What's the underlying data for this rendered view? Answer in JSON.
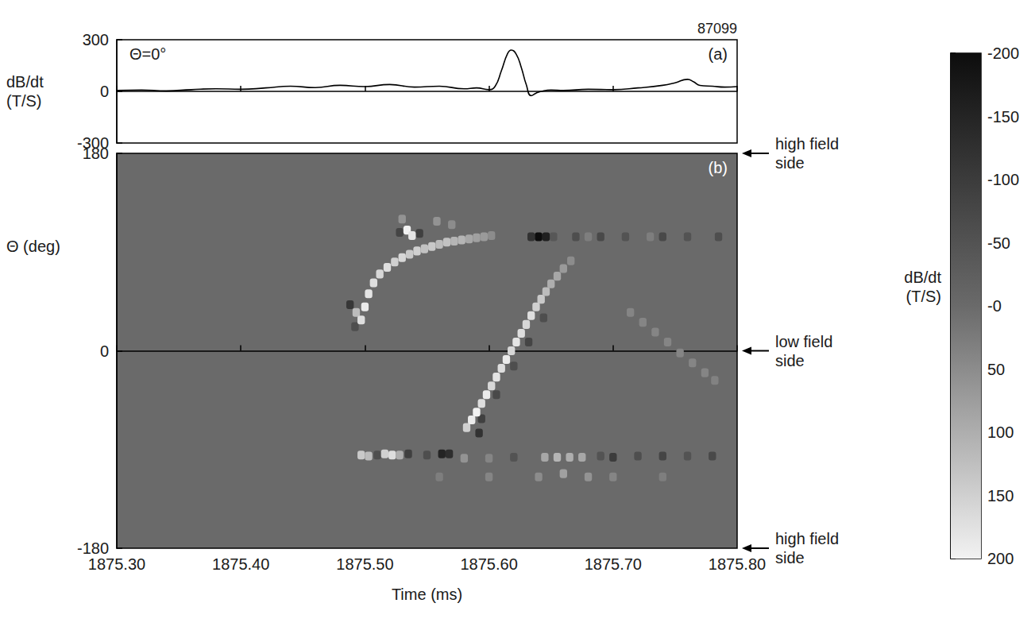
{
  "chart_data": [
    {
      "type": "line",
      "shot": "87099",
      "annotation": "Θ=0°",
      "panel_label": "(a)",
      "ylabel": "dB/dt\n(T/S)",
      "color": "#000000",
      "x": [
        1875.3,
        1875.32,
        1875.34,
        1875.36,
        1875.38,
        1875.4,
        1875.42,
        1875.44,
        1875.46,
        1875.48,
        1875.5,
        1875.52,
        1875.54,
        1875.56,
        1875.58,
        1875.59,
        1875.6,
        1875.605,
        1875.61,
        1875.615,
        1875.618,
        1875.622,
        1875.626,
        1875.63,
        1875.634,
        1875.638,
        1875.642,
        1875.65,
        1875.66,
        1875.68,
        1875.7,
        1875.72,
        1875.74,
        1875.75,
        1875.76,
        1875.765,
        1875.77,
        1875.78,
        1875.79,
        1875.8
      ],
      "values": [
        5,
        8,
        3,
        10,
        15,
        12,
        20,
        30,
        22,
        35,
        28,
        40,
        25,
        30,
        15,
        20,
        10,
        30,
        120,
        220,
        240,
        215,
        140,
        40,
        -25,
        -10,
        0,
        8,
        5,
        12,
        10,
        20,
        35,
        50,
        70,
        55,
        35,
        30,
        25,
        28
      ],
      "xlim": [
        1875.3,
        1875.8
      ],
      "xticks": [
        {
          "value": 1875.3,
          "label": "1875.30"
        },
        {
          "value": 1875.4,
          "label": "1875.40"
        },
        {
          "value": 1875.5,
          "label": "1875.50"
        },
        {
          "value": 1875.6,
          "label": "1875.60"
        },
        {
          "value": 1875.7,
          "label": "1875.70"
        },
        {
          "value": 1875.8,
          "label": "1875.80"
        }
      ],
      "ylim": [
        -300,
        300
      ],
      "yticks": [
        -300,
        0,
        300
      ],
      "tick_labels": "y"
    },
    {
      "type": "heatmap",
      "panel_label": "(b)",
      "xlabel": "Time (ms)",
      "ylabel": "Θ (deg)",
      "xlim": [
        1875.3,
        1875.8
      ],
      "xticks": [
        {
          "value": 1875.3,
          "label": "1875.30"
        },
        {
          "value": 1875.4,
          "label": "1875.40"
        },
        {
          "value": 1875.5,
          "label": "1875.50"
        },
        {
          "value": 1875.6,
          "label": "1875.60"
        },
        {
          "value": 1875.7,
          "label": "1875.70"
        },
        {
          "value": 1875.8,
          "label": "1875.80"
        }
      ],
      "ylim": [
        -180,
        180
      ],
      "yticks": [
        -180,
        0,
        180
      ],
      "annotations": [
        {
          "text": "high field side",
          "y": 180
        },
        {
          "text": "low field side",
          "y": 0
        },
        {
          "text": "high field side",
          "y": -180
        }
      ],
      "colorbar": {
        "label": "dB/dt\n(T/S)",
        "range": [
          -200,
          200
        ],
        "ticks": [
          -200,
          -150,
          -100,
          -50,
          {
            "value": 0,
            "label": "-0"
          },
          50,
          100,
          150,
          200
        ]
      },
      "cell_size": [
        0.006,
        8
      ],
      "cells": [
        [
          1875.56,
          -115,
          30
        ],
        [
          1875.6,
          -115,
          40
        ],
        [
          1875.64,
          -115,
          50
        ],
        [
          1875.66,
          -112,
          80
        ],
        [
          1875.68,
          -115,
          60
        ],
        [
          1875.7,
          -115,
          40
        ],
        [
          1875.74,
          -115,
          30
        ],
        [
          1875.714,
          35,
          40
        ],
        [
          1875.724,
          26,
          40
        ],
        [
          1875.734,
          17,
          40
        ],
        [
          1875.744,
          8,
          40
        ],
        [
          1875.754,
          -2,
          40
        ],
        [
          1875.764,
          -11,
          40
        ],
        [
          1875.774,
          -20,
          40
        ],
        [
          1875.782,
          -27,
          35
        ],
        [
          1875.488,
          42,
          -110
        ],
        [
          1875.492,
          22,
          -60
        ],
        [
          1875.493,
          35,
          120
        ],
        [
          1875.497,
          28,
          170
        ],
        [
          1875.5,
          40,
          190
        ],
        [
          1875.503,
          52,
          180
        ],
        [
          1875.507,
          62,
          170
        ],
        [
          1875.512,
          70,
          160
        ],
        [
          1875.518,
          76,
          170
        ],
        [
          1875.524,
          81,
          150
        ],
        [
          1875.53,
          85,
          160
        ],
        [
          1875.536,
          88,
          140
        ],
        [
          1875.542,
          91,
          150
        ],
        [
          1875.548,
          93,
          130
        ],
        [
          1875.554,
          95,
          140
        ],
        [
          1875.56,
          97,
          120
        ],
        [
          1875.566,
          99,
          130
        ],
        [
          1875.572,
          100,
          110
        ],
        [
          1875.578,
          101,
          110
        ],
        [
          1875.584,
          102,
          90
        ],
        [
          1875.59,
          103,
          80
        ],
        [
          1875.596,
          104,
          70
        ],
        [
          1875.602,
          105,
          50
        ],
        [
          1875.53,
          120,
          60
        ],
        [
          1875.558,
          118,
          60
        ],
        [
          1875.57,
          115,
          50
        ],
        [
          1875.528,
          108,
          -80
        ],
        [
          1875.544,
          107,
          -90
        ],
        [
          1875.534,
          110,
          200
        ],
        [
          1875.538,
          105,
          180
        ],
        [
          1875.634,
          104,
          -120
        ],
        [
          1875.652,
          104,
          -40
        ],
        [
          1875.646,
          104,
          -160
        ],
        [
          1875.64,
          104,
          -200
        ],
        [
          1875.67,
          104,
          -60
        ],
        [
          1875.68,
          104,
          30
        ],
        [
          1875.69,
          104,
          -70
        ],
        [
          1875.71,
          104,
          -50
        ],
        [
          1875.73,
          104,
          30
        ],
        [
          1875.74,
          104,
          -70
        ],
        [
          1875.76,
          104,
          -50
        ],
        [
          1875.785,
          104,
          -60
        ],
        [
          1875.592,
          -75,
          -120
        ],
        [
          1875.594,
          -62,
          -90
        ],
        [
          1875.606,
          -40,
          -70
        ],
        [
          1875.62,
          -14,
          -60
        ],
        [
          1875.632,
          8,
          -80
        ],
        [
          1875.644,
          30,
          -60
        ],
        [
          1875.582,
          -70,
          150
        ],
        [
          1875.586,
          -63,
          190
        ],
        [
          1875.59,
          -56,
          200
        ],
        [
          1875.594,
          -48,
          170
        ],
        [
          1875.598,
          -40,
          190
        ],
        [
          1875.602,
          -32,
          160
        ],
        [
          1875.606,
          -24,
          180
        ],
        [
          1875.61,
          -16,
          170
        ],
        [
          1875.614,
          -8,
          190
        ],
        [
          1875.618,
          0,
          160
        ],
        [
          1875.622,
          8,
          180
        ],
        [
          1875.626,
          16,
          170
        ],
        [
          1875.63,
          24,
          160
        ],
        [
          1875.634,
          32,
          170
        ],
        [
          1875.638,
          40,
          150
        ],
        [
          1875.642,
          47,
          140
        ],
        [
          1875.646,
          54,
          120
        ],
        [
          1875.65,
          61,
          100
        ],
        [
          1875.655,
          68,
          90
        ],
        [
          1875.66,
          75,
          70
        ],
        [
          1875.666,
          82,
          50
        ],
        [
          1875.497,
          -95,
          140
        ],
        [
          1875.503,
          -96,
          120
        ],
        [
          1875.51,
          -95,
          -60
        ],
        [
          1875.516,
          -94,
          150
        ],
        [
          1875.522,
          -95,
          170
        ],
        [
          1875.528,
          -95,
          100
        ],
        [
          1875.535,
          -94,
          -90
        ],
        [
          1875.55,
          -95,
          -60
        ],
        [
          1875.562,
          -94,
          -150
        ],
        [
          1875.568,
          -94,
          -130
        ],
        [
          1875.58,
          -98,
          60
        ],
        [
          1875.6,
          -98,
          40
        ],
        [
          1875.62,
          -97,
          -50
        ],
        [
          1875.645,
          -97,
          90
        ],
        [
          1875.655,
          -97,
          110
        ],
        [
          1875.665,
          -97,
          100
        ],
        [
          1875.675,
          -97,
          90
        ],
        [
          1875.69,
          -96,
          -50
        ],
        [
          1875.7,
          -97,
          -100
        ],
        [
          1875.72,
          -96,
          -60
        ],
        [
          1875.74,
          -96,
          -80
        ],
        [
          1875.76,
          -96,
          -50
        ],
        [
          1875.78,
          -96,
          -70
        ]
      ]
    }
  ]
}
